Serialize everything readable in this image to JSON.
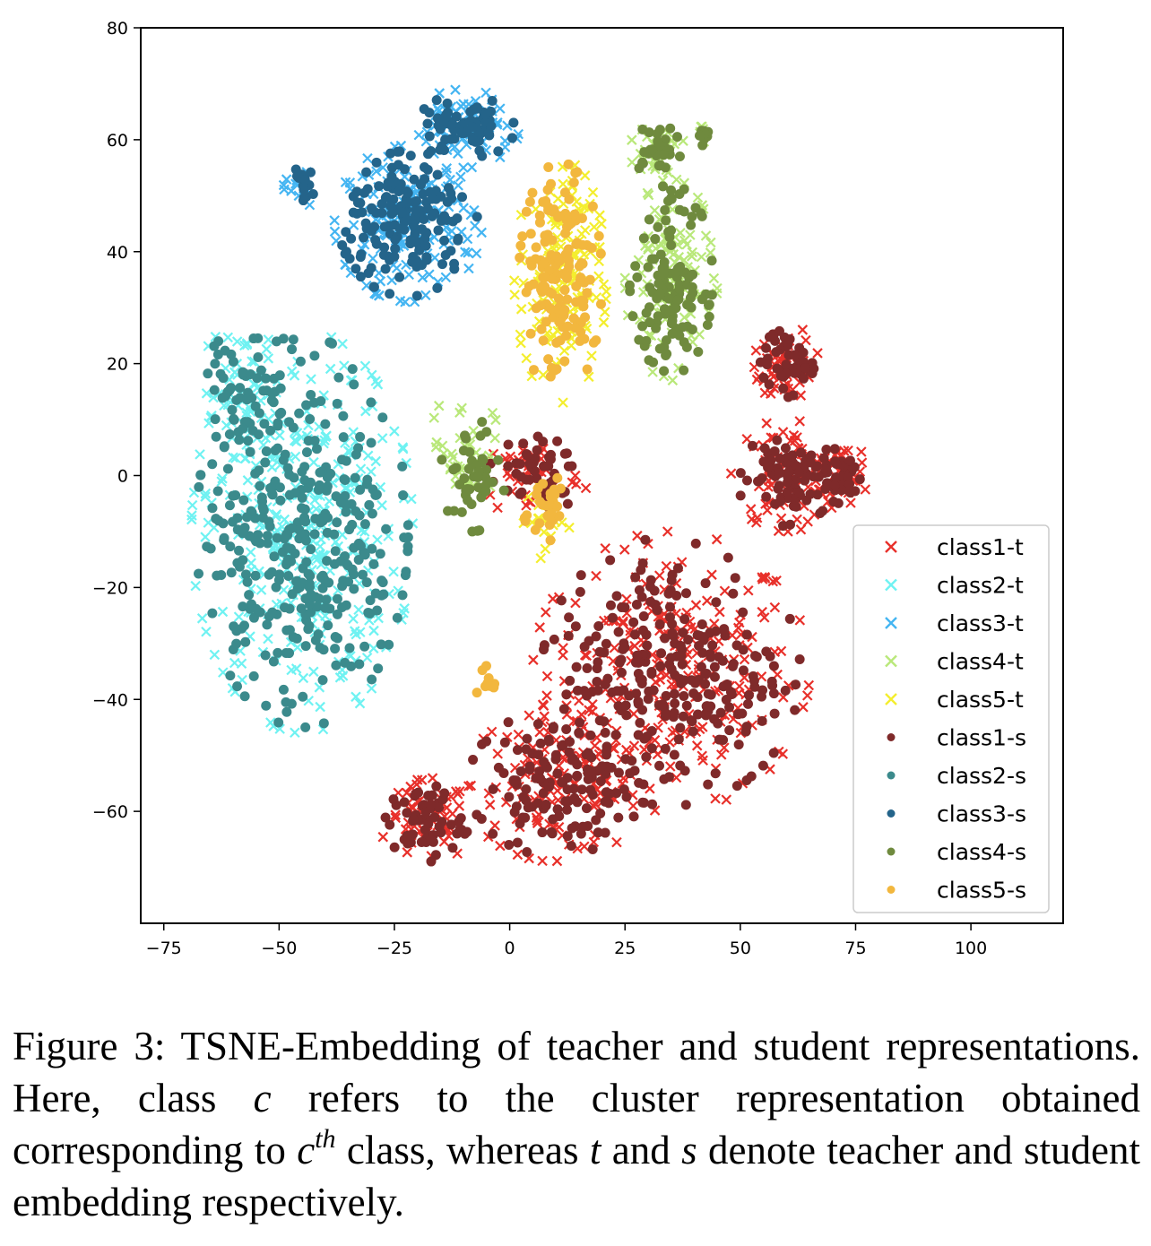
{
  "chart_data": {
    "type": "scatter",
    "title": "",
    "xlabel": "",
    "ylabel": "",
    "xlim": [
      -80,
      120
    ],
    "ylim": [
      -80,
      80
    ],
    "xticks": [
      -75,
      -50,
      -25,
      0,
      25,
      50,
      75,
      100
    ],
    "yticks": [
      -60,
      -40,
      -20,
      0,
      20,
      40,
      60,
      80
    ],
    "xtick_labels": [
      "−75",
      "−50",
      "−25",
      "0",
      "25",
      "50",
      "75",
      "100"
    ],
    "ytick_labels": [
      "−60",
      "−40",
      "−20",
      "0",
      "20",
      "40",
      "60",
      "80"
    ],
    "grid": false,
    "legend_position": "lower-right",
    "series": [
      {
        "name": "class1-t",
        "marker": "x",
        "color": "#e8302a",
        "clusters": [
          {
            "cx": 35,
            "cy": -35,
            "rx": 30,
            "ry": 25,
            "n": 260
          },
          {
            "cx": 10,
            "cy": -55,
            "rx": 20,
            "ry": 14,
            "n": 120
          },
          {
            "cx": -18,
            "cy": -62,
            "rx": 10,
            "ry": 8,
            "n": 60
          },
          {
            "cx": 60,
            "cy": 20,
            "rx": 7,
            "ry": 7,
            "n": 50
          },
          {
            "cx": 60,
            "cy": 0,
            "rx": 12,
            "ry": 10,
            "n": 80
          },
          {
            "cx": 72,
            "cy": 0,
            "rx": 6,
            "ry": 6,
            "n": 35
          },
          {
            "cx": 5,
            "cy": 0,
            "rx": 12,
            "ry": 8,
            "n": 50
          }
        ]
      },
      {
        "name": "class2-t",
        "marker": "x",
        "color": "#6ff2f2",
        "clusters": [
          {
            "cx": -45,
            "cy": -10,
            "rx": 24,
            "ry": 36,
            "n": 330
          },
          {
            "cx": -58,
            "cy": 15,
            "rx": 10,
            "ry": 12,
            "n": 50
          }
        ]
      },
      {
        "name": "class3-t",
        "marker": "x",
        "color": "#44b5f2",
        "clusters": [
          {
            "cx": -22,
            "cy": 45,
            "rx": 16,
            "ry": 14,
            "n": 160
          },
          {
            "cx": -10,
            "cy": 62,
            "rx": 12,
            "ry": 7,
            "n": 70
          },
          {
            "cx": -45,
            "cy": 52,
            "rx": 4,
            "ry": 4,
            "n": 15
          }
        ]
      },
      {
        "name": "class4-t",
        "marker": "x",
        "color": "#b9e87a",
        "clusters": [
          {
            "cx": 35,
            "cy": 35,
            "rx": 10,
            "ry": 18,
            "n": 110
          },
          {
            "cx": 32,
            "cy": 58,
            "rx": 6,
            "ry": 5,
            "n": 30
          },
          {
            "cx": -10,
            "cy": 5,
            "rx": 8,
            "ry": 10,
            "n": 40
          },
          {
            "cx": 42,
            "cy": 61,
            "rx": 2,
            "ry": 2,
            "n": 8
          }
        ]
      },
      {
        "name": "class5-t",
        "marker": "x",
        "color": "#f4ee2e",
        "clusters": [
          {
            "cx": 11,
            "cy": 35,
            "rx": 10,
            "ry": 22,
            "n": 140
          },
          {
            "cx": 8,
            "cy": -8,
            "rx": 5,
            "ry": 7,
            "n": 20
          }
        ]
      },
      {
        "name": "class1-s",
        "marker": "o",
        "color": "#7f2a2a",
        "clusters": [
          {
            "cx": 35,
            "cy": -35,
            "rx": 28,
            "ry": 24,
            "n": 280
          },
          {
            "cx": 10,
            "cy": -55,
            "rx": 19,
            "ry": 13,
            "n": 130
          },
          {
            "cx": -18,
            "cy": -62,
            "rx": 9,
            "ry": 7,
            "n": 60
          },
          {
            "cx": 60,
            "cy": 20,
            "rx": 6,
            "ry": 6,
            "n": 50
          },
          {
            "cx": 60,
            "cy": 0,
            "rx": 11,
            "ry": 9,
            "n": 80
          },
          {
            "cx": 72,
            "cy": 0,
            "rx": 5,
            "ry": 5,
            "n": 35
          },
          {
            "cx": 5,
            "cy": 0,
            "rx": 11,
            "ry": 7,
            "n": 50
          }
        ]
      },
      {
        "name": "class2-s",
        "marker": "o",
        "color": "#3b8a8c",
        "clusters": [
          {
            "cx": -45,
            "cy": -10,
            "rx": 23,
            "ry": 35,
            "n": 360
          },
          {
            "cx": -58,
            "cy": 15,
            "rx": 9,
            "ry": 11,
            "n": 50
          }
        ]
      },
      {
        "name": "class3-s",
        "marker": "o",
        "color": "#24648a",
        "clusters": [
          {
            "cx": -22,
            "cy": 45,
            "rx": 15,
            "ry": 13,
            "n": 170
          },
          {
            "cx": -10,
            "cy": 62,
            "rx": 11,
            "ry": 6,
            "n": 70
          },
          {
            "cx": -45,
            "cy": 52,
            "rx": 3,
            "ry": 3,
            "n": 15
          }
        ]
      },
      {
        "name": "class4-s",
        "marker": "o",
        "color": "#6f8a3e",
        "clusters": [
          {
            "cx": 35,
            "cy": 35,
            "rx": 9,
            "ry": 17,
            "n": 120
          },
          {
            "cx": 32,
            "cy": 58,
            "rx": 5,
            "ry": 5,
            "n": 30
          },
          {
            "cx": -8,
            "cy": 0,
            "rx": 7,
            "ry": 10,
            "n": 45
          },
          {
            "cx": 42,
            "cy": 61,
            "rx": 2,
            "ry": 2,
            "n": 8
          }
        ]
      },
      {
        "name": "class5-s",
        "marker": "o",
        "color": "#f2b73e",
        "clusters": [
          {
            "cx": 11,
            "cy": 35,
            "rx": 9,
            "ry": 21,
            "n": 150
          },
          {
            "cx": 8,
            "cy": -5,
            "rx": 5,
            "ry": 8,
            "n": 30
          },
          {
            "cx": -5,
            "cy": -37,
            "rx": 3,
            "ry": 5,
            "n": 10
          }
        ]
      }
    ]
  },
  "caption": {
    "text_1": "Figure 3: TSNE-Embedding of teacher and student representations. Here, class ",
    "var_c": "c",
    "text_2": " refers to the cluster representation obtained corresponding to ",
    "var_c2": "c",
    "sup_th": "th",
    "text_3": " class, whereas ",
    "var_t": "t",
    "text_4": " and ",
    "var_s": "s",
    "text_5": " denote teacher and student embedding respectively."
  }
}
